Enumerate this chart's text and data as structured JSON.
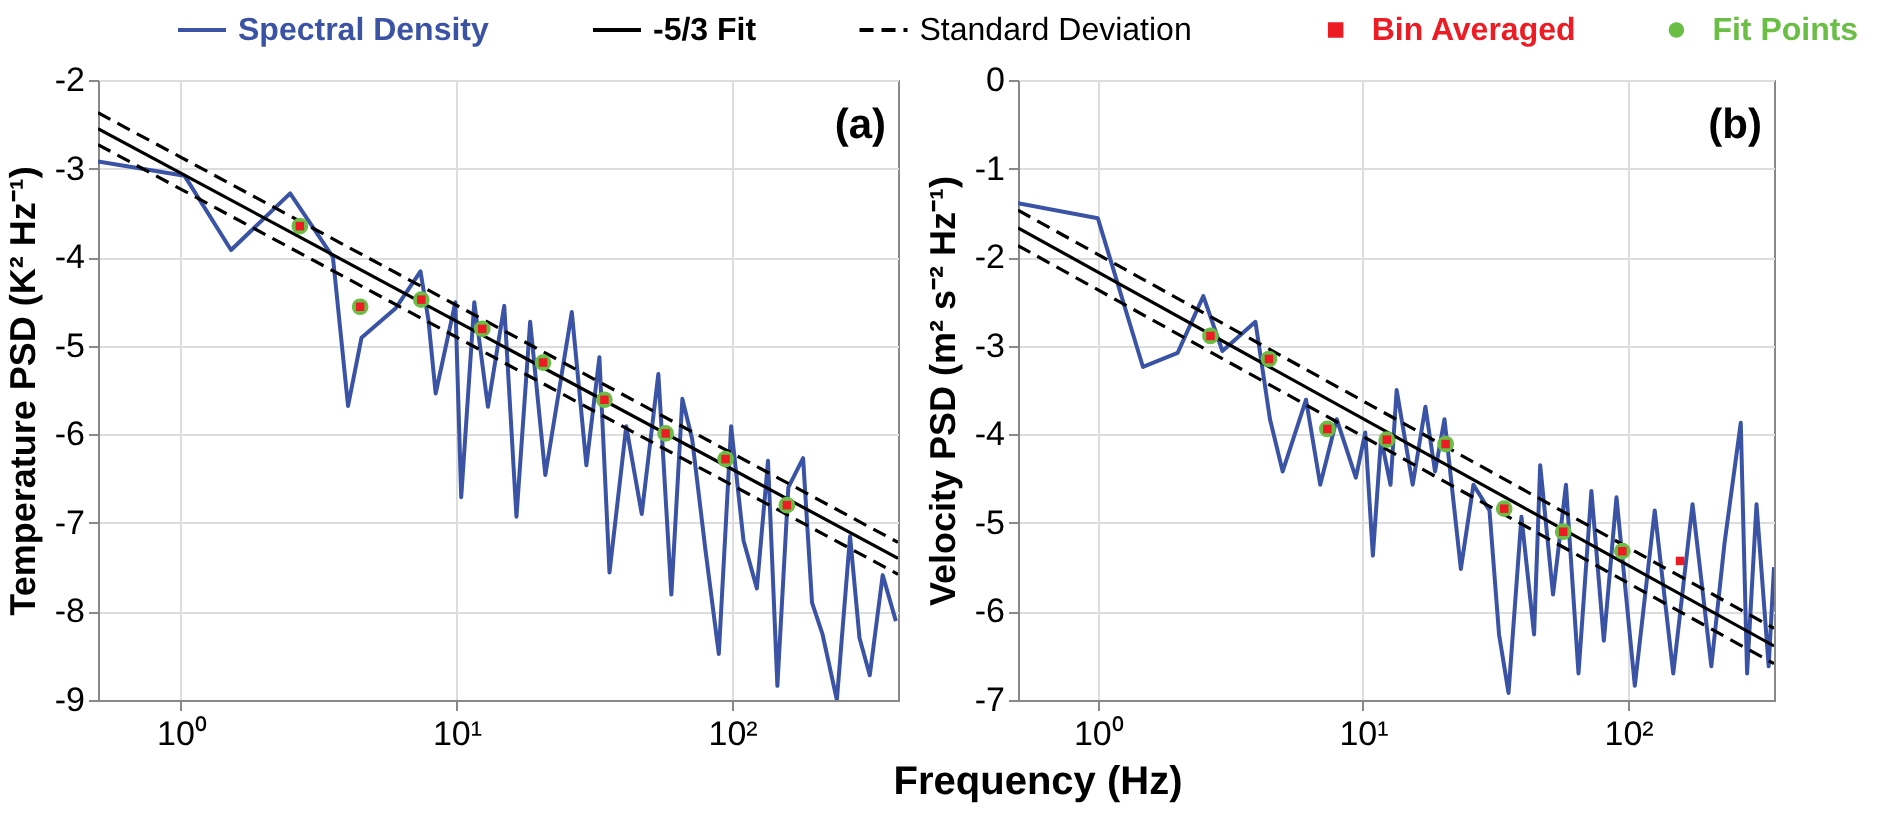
{
  "chart_data": [
    {
      "type": "line",
      "xlabel": "Frequency (Hz)",
      "ylabel": "Temperature PSD (K² Hz⁻¹)",
      "legend": "top",
      "log": "x",
      "grid": true,
      "annotations": [
        "(a)"
      ],
      "xlim": [
        0.5,
        400
      ],
      "xticks": [
        {
          "value": 1,
          "label": "10⁰"
        },
        {
          "value": 10,
          "label": "10¹"
        },
        {
          "value": 100,
          "label": "10²"
        }
      ],
      "ylim": [
        -9,
        -2
      ],
      "yticks": [
        -9,
        -8,
        -7,
        -6,
        -5,
        -4,
        -3,
        -2
      ],
      "series": [
        {
          "name": "Spectral Density",
          "color": "#3a53a4",
          "x": [
            0.5,
            1.03,
            1.52,
            2.49,
            3.56,
            4.04,
            4.52,
            6.0,
            7.4,
            7.9,
            8.4,
            9.9,
            10.4,
            11.6,
            13.0,
            14.9,
            16.5,
            18.5,
            21.0,
            26.2,
            29.6,
            33.0,
            35.9,
            41.3,
            47,
            54,
            60.2,
            66,
            71.6,
            80,
            89.5,
            99.2,
            110,
            123,
            135,
            146,
            160,
            181,
            195,
            213,
            240,
            268,
            290,
            316,
            352,
            393
          ],
          "values": [
            -2.92,
            -3.08,
            -3.92,
            -3.28,
            -4.0,
            -5.68,
            -4.91,
            -4.58,
            -4.16,
            -4.7,
            -5.54,
            -4.51,
            -6.71,
            -4.51,
            -5.69,
            -4.55,
            -6.93,
            -4.73,
            -6.46,
            -4.62,
            -6.35,
            -5.13,
            -7.56,
            -5.91,
            -6.9,
            -5.32,
            -7.81,
            -5.6,
            -6.05,
            -7.3,
            -8.48,
            -5.91,
            -7.2,
            -7.74,
            -6.3,
            -8.84,
            -6.6,
            -6.27,
            -7.9,
            -8.26,
            -9.0,
            -7.15,
            -8.3,
            -8.72,
            -7.59,
            -8.11
          ]
        },
        {
          "name": "-5/3 Fit",
          "color": "#000000",
          "line_style": "solid",
          "x": [
            0.5,
            400
          ],
          "values": [
            -2.55,
            -7.4
          ]
        },
        {
          "name": "Standard Deviation",
          "color": "#000000",
          "line_style": "dashed",
          "x": [
            0.5,
            400
          ],
          "values": [
            -2.37,
            -7.22
          ]
        },
        {
          "color": "#000000",
          "line_style": "dashed",
          "x": [
            0.5,
            400
          ],
          "values": [
            -2.73,
            -7.58
          ]
        },
        {
          "name": "Bin Averaged",
          "type": "scatter",
          "marker": "square",
          "color": "#ed1c24",
          "x": [
            2.7,
            4.47,
            7.45,
            12.4,
            20.6,
            34.4,
            57.4,
            94.7,
            158
          ],
          "values": [
            -3.65,
            -4.56,
            -4.48,
            -4.81,
            -5.19,
            -5.61,
            -5.99,
            -6.28,
            -6.8
          ]
        },
        {
          "name": "Fit Points",
          "type": "scatter",
          "marker": "circle",
          "color": "#6abd45",
          "x": [
            2.7,
            4.47,
            7.45,
            12.4,
            20.6,
            34.4,
            57.4,
            94.7,
            158
          ],
          "values": [
            -3.65,
            -4.56,
            -4.48,
            -4.81,
            -5.19,
            -5.61,
            -5.99,
            -6.28,
            -6.8
          ]
        }
      ]
    },
    {
      "type": "line",
      "ylabel": "Velocity PSD (m² s⁻² Hz⁻¹)",
      "log": "x",
      "grid": true,
      "annotations": [
        "(b)"
      ],
      "xlim": [
        0.5,
        355
      ],
      "xticks": [
        {
          "value": 1,
          "label": "10⁰"
        },
        {
          "value": 10,
          "label": "10¹"
        },
        {
          "value": 100,
          "label": "10²"
        }
      ],
      "ylim": [
        -7,
        0
      ],
      "yticks": [
        -7,
        -6,
        -5,
        -4,
        -3,
        -2,
        -1,
        0
      ],
      "series": [
        {
          "color": "#3a53a4",
          "x": [
            0.5,
            1.0,
            1.48,
            2.0,
            2.5,
            2.95,
            3.93,
            4.46,
            4.98,
            6.1,
            6.9,
            7.96,
            9.4,
            10.2,
            10.9,
            11.7,
            12.7,
            13.4,
            15.4,
            17.2,
            18.7,
            20.3,
            23.4,
            26.1,
            30.0,
            32.6,
            35.4,
            39.6,
            44.2,
            46.6,
            52.1,
            58.3,
            65.0,
            72.7,
            81.0,
            90.4,
            106,
            126,
            148,
            175,
            206,
            231,
            266,
            281,
            305,
            339,
            355
          ],
          "values": [
            -1.39,
            -1.56,
            -3.24,
            -3.08,
            -2.44,
            -3.06,
            -2.73,
            -3.83,
            -4.42,
            -3.61,
            -4.57,
            -3.83,
            -4.49,
            -3.98,
            -5.37,
            -4.05,
            -4.57,
            -3.5,
            -4.57,
            -3.69,
            -4.42,
            -3.83,
            -5.52,
            -4.57,
            -4.86,
            -6.26,
            -6.92,
            -4.93,
            -6.26,
            -4.35,
            -5.81,
            -4.57,
            -6.7,
            -4.64,
            -6.33,
            -4.71,
            -6.84,
            -4.86,
            -6.7,
            -4.79,
            -6.62,
            -5.23,
            -3.87,
            -6.7,
            -4.79,
            -6.62,
            -5.5
          ]
        },
        {
          "color": "#000000",
          "line_style": "solid",
          "x": [
            0.5,
            355
          ],
          "values": [
            -1.67,
            -6.39
          ]
        },
        {
          "color": "#000000",
          "line_style": "dashed",
          "x": [
            0.5,
            355
          ],
          "values": [
            -1.47,
            -6.19
          ]
        },
        {
          "color": "#000000",
          "line_style": "dashed",
          "x": [
            0.5,
            355
          ],
          "values": [
            -1.87,
            -6.59
          ]
        },
        {
          "type": "scatter",
          "marker": "square",
          "color": "#ed1c24",
          "x": [
            2.66,
            4.42,
            7.34,
            12.3,
            20.5,
            34.1,
            56.9,
            95.1,
            157
          ],
          "values": [
            -2.89,
            -3.15,
            -3.94,
            -4.06,
            -4.11,
            -4.84,
            -5.1,
            -5.32,
            -5.43
          ]
        },
        {
          "type": "scatter",
          "marker": "circle",
          "color": "#6abd45",
          "x": [
            2.66,
            4.42,
            7.34,
            12.3,
            20.5,
            34.1,
            56.9,
            95.1
          ],
          "values": [
            -2.89,
            -3.15,
            -3.94,
            -4.06,
            -4.11,
            -4.84,
            -5.1,
            -5.32
          ]
        }
      ]
    }
  ]
}
